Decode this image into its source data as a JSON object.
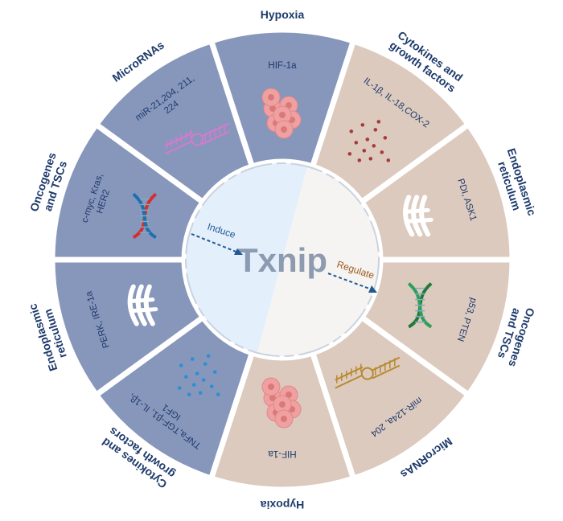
{
  "center": {
    "title": "Txnip",
    "induce_label": "Induce",
    "regulate_label": "Regulate"
  },
  "colors": {
    "induce_side": "#8796bb",
    "regulate_side": "#dccabe",
    "induce_core": "#e4effc",
    "regulate_core": "#f6f4f2",
    "text": "#1d3a6b",
    "induce_arrow": "#1f5a93",
    "regulate_text": "#9a5a1f"
  },
  "segments": [
    {
      "side": "induce",
      "label": [
        "Hypoxia"
      ],
      "content": [
        "HIF-1a"
      ],
      "icon": "cell-cluster-icon"
    },
    {
      "side": "regulate",
      "label": [
        "Cytokines and",
        "growth factors"
      ],
      "content": [
        "IL-1β, IL-18,COX-2"
      ],
      "icon": "cytokine-dots-icon"
    },
    {
      "side": "regulate",
      "label": [
        "Endoplasmic",
        "reticulum"
      ],
      "content": [
        "PDI, ASK1"
      ],
      "icon": "endoplasmic-reticulum-icon"
    },
    {
      "side": "regulate",
      "label": [
        "Oncogenes",
        "and TSCs"
      ],
      "content": [
        "p53, PTEN"
      ],
      "icon": "dna-icon"
    },
    {
      "side": "regulate",
      "label": [
        "MicroRNAs"
      ],
      "content": [
        "miR-124a, 204"
      ],
      "icon": "rna-hairpin-icon"
    },
    {
      "side": "regulate",
      "label": [
        "Hypoxia"
      ],
      "content": [
        "HIF-1a"
      ],
      "icon": "cell-cluster-icon"
    },
    {
      "side": "induce",
      "label": [
        "Cytokines and",
        "growth factors"
      ],
      "content": [
        "TNFa,TGF-β1, IL-1β,",
        "IGF1"
      ],
      "icon": "cytokine-dots-icon"
    },
    {
      "side": "induce",
      "label": [
        "Endoplasmic",
        "reticulum"
      ],
      "content": [
        "PERK, IRE-1a"
      ],
      "icon": "endoplasmic-reticulum-icon"
    },
    {
      "side": "induce",
      "label": [
        "Oncogenes",
        "and TSCs"
      ],
      "content": [
        "c-myc, Kras,",
        "HER2"
      ],
      "icon": "dna-icon"
    },
    {
      "side": "induce",
      "label": [
        "MicroRNAs"
      ],
      "content": [
        "miR-21,204, 211,",
        "224"
      ],
      "icon": "rna-hairpin-icon"
    }
  ]
}
